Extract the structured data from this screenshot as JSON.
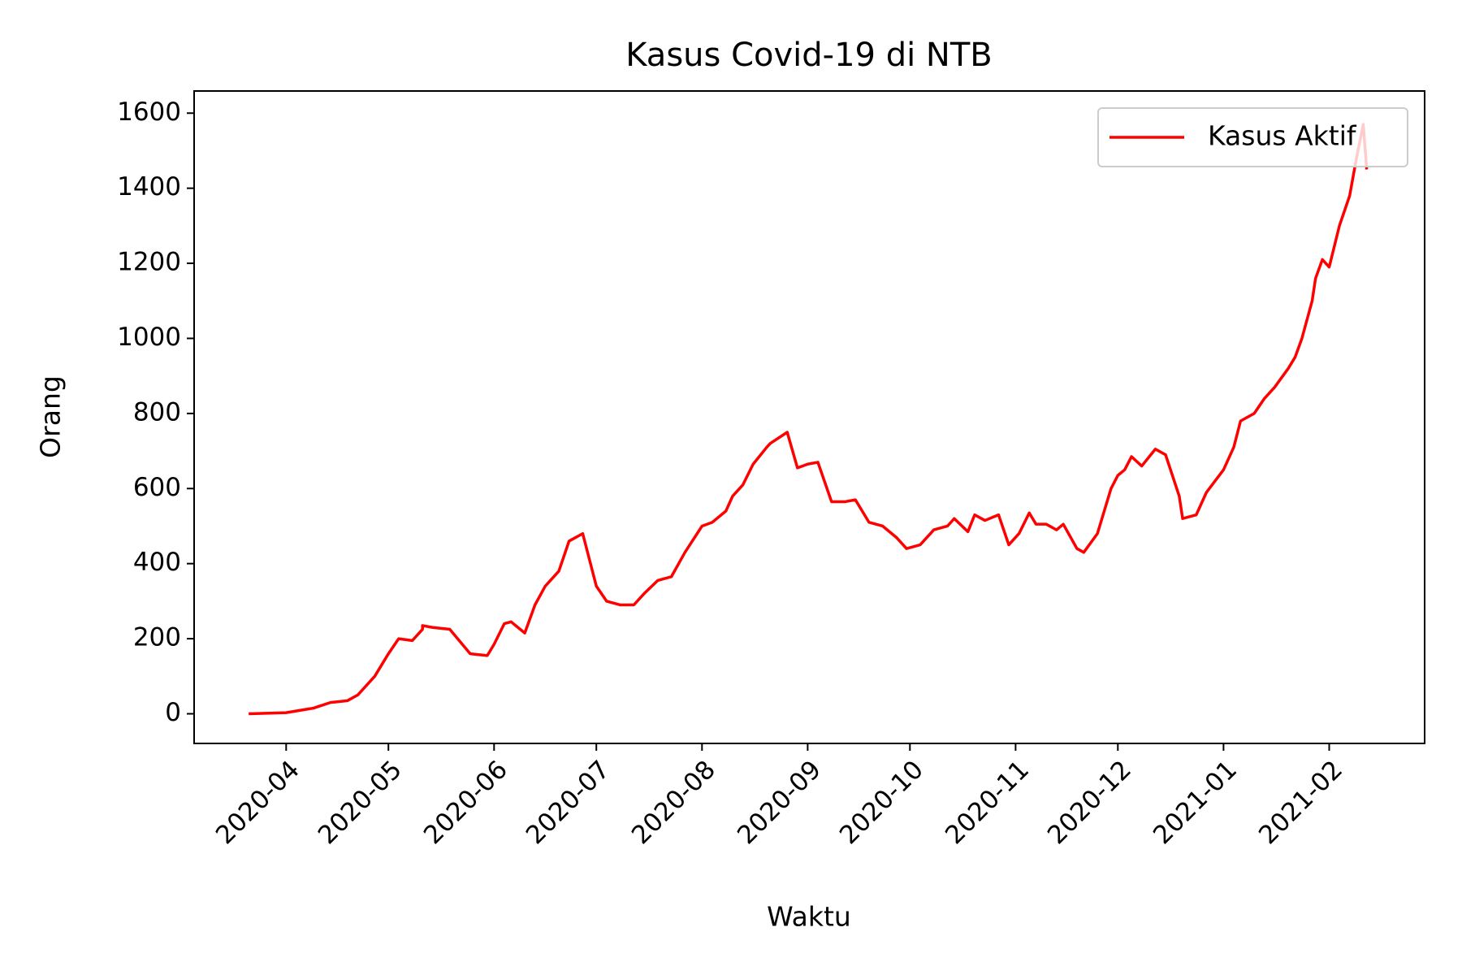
{
  "chart_data": {
    "type": "line",
    "title": "Kasus Covid-19 di NTB",
    "xlabel": "Waktu",
    "ylabel": "Orang",
    "x": [
      18342,
      18353,
      18361,
      18366,
      18371,
      18374,
      18379,
      18383,
      18386,
      18390,
      18393,
      18393,
      18396,
      18401,
      18407,
      18412,
      18414,
      18417,
      18419,
      18423,
      18426,
      18429,
      18433,
      18436,
      18440,
      18444,
      18447,
      18451,
      18455,
      18458,
      18462,
      18466,
      18470,
      18475,
      18478,
      18482,
      18484,
      18487,
      18490,
      18494,
      18495,
      18500,
      18503,
      18506,
      18509,
      18513,
      18517,
      18520,
      18524,
      18528,
      18532,
      18535,
      18539,
      18543,
      18547,
      18549,
      18553,
      18555,
      18558,
      18562,
      18565,
      18568,
      18571,
      18573,
      18576,
      18579,
      18581,
      18585,
      18587,
      18591,
      18595,
      18597,
      18599,
      18601,
      18604,
      18608,
      18611,
      18615,
      18616,
      18620,
      18623,
      18628,
      18631,
      18633,
      18637,
      18640,
      18643,
      18647,
      18649,
      18651,
      18654,
      18655,
      18657,
      18659,
      18662,
      18665,
      18667,
      18669,
      18670
    ],
    "series": [
      {
        "name": "Kasus Aktif",
        "color": "#ff0000",
        "values": [
          0,
          3,
          15,
          30,
          35,
          50,
          100,
          160,
          200,
          195,
          225,
          235,
          230,
          225,
          160,
          155,
          185,
          240,
          245,
          215,
          290,
          340,
          380,
          460,
          480,
          340,
          300,
          290,
          290,
          320,
          355,
          365,
          430,
          500,
          510,
          540,
          580,
          610,
          665,
          710,
          720,
          750,
          655,
          665,
          670,
          565,
          565,
          570,
          510,
          500,
          470,
          440,
          450,
          490,
          500,
          520,
          485,
          530,
          515,
          530,
          450,
          480,
          535,
          505,
          505,
          490,
          505,
          440,
          430,
          480,
          600,
          635,
          650,
          685,
          660,
          705,
          690,
          580,
          520,
          530,
          590,
          650,
          710,
          780,
          800,
          840,
          870,
          920,
          950,
          1000,
          1100,
          1160,
          1210,
          1190,
          1300,
          1380,
          1480,
          1570,
          1450
        ]
      }
    ],
    "xlim": [
      18326,
      18687
    ],
    "ylim": [
      -79,
      1659
    ],
    "yticks": [
      0,
      200,
      400,
      600,
      800,
      1000,
      1200,
      1400,
      1600
    ],
    "xticks": [
      {
        "value": 18353,
        "label": "2020-04"
      },
      {
        "value": 18383,
        "label": "2020-05"
      },
      {
        "value": 18414,
        "label": "2020-06"
      },
      {
        "value": 18444,
        "label": "2020-07"
      },
      {
        "value": 18475,
        "label": "2020-08"
      },
      {
        "value": 18506,
        "label": "2020-09"
      },
      {
        "value": 18536,
        "label": "2020-10"
      },
      {
        "value": 18567,
        "label": "2020-11"
      },
      {
        "value": 18597,
        "label": "2020-12"
      },
      {
        "value": 18628,
        "label": "2021-01"
      },
      {
        "value": 18659,
        "label": "2021-02"
      }
    ],
    "grid": false,
    "legend": "upper right"
  }
}
